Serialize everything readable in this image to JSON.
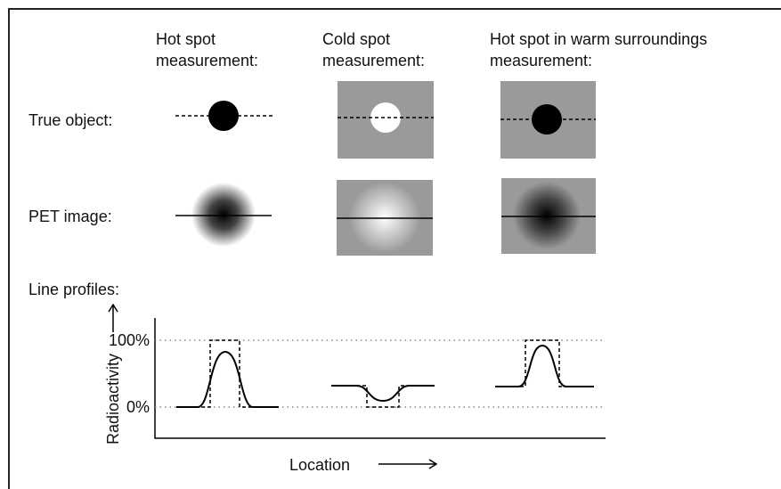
{
  "columns": [
    {
      "lines": [
        "Hot spot",
        "measurement:"
      ]
    },
    {
      "lines": [
        "Cold spot",
        "measurement:"
      ]
    },
    {
      "lines": [
        "Hot spot in warm surroundings",
        "measurement:"
      ]
    }
  ],
  "rows": {
    "true_object": "True object:",
    "pet_image": "PET  image:",
    "line_profiles": "Line profiles:"
  },
  "axes": {
    "y_label": "Radioactivity",
    "y_high": "100%",
    "y_low": "0%",
    "x_label": "Location"
  }
}
